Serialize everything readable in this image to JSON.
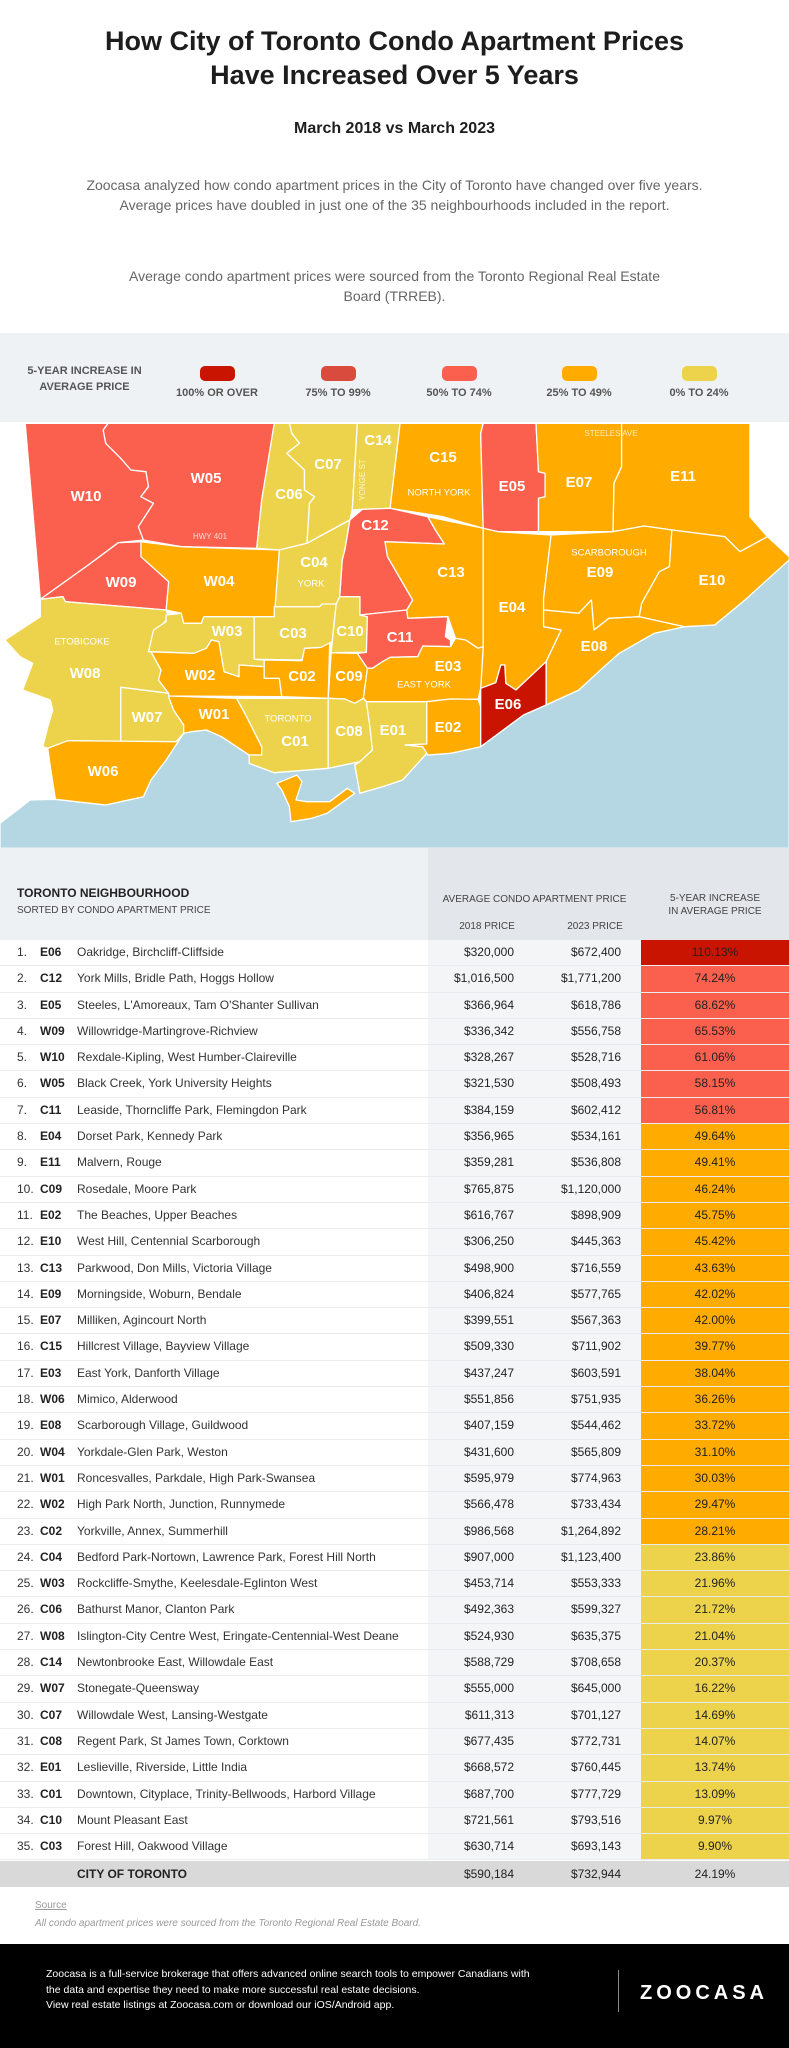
{
  "header": {
    "title_line1": "How City of Toronto Condo Apartment Prices",
    "title_line2": "Have Increased Over 5 Years",
    "subtitle": "March 2018 vs March 2023",
    "intro": "Zoocasa analyzed how condo apartment prices in the City of Toronto have changed over five years. Average prices have doubled in just one of the 35 neighbourhoods included in the report.",
    "source_note": "Average condo apartment prices were sourced from the Toronto Regional Real Estate Board (TRREB)."
  },
  "legend": {
    "title": "5-YEAR INCREASE IN AVERAGE PRICE",
    "items": [
      {
        "label": "100% OR OVER",
        "color": "#c81400"
      },
      {
        "label": "75% TO 99%",
        "color": "#d94b3c"
      },
      {
        "label": "50% TO 74%",
        "color": "#fb5f4d"
      },
      {
        "label": "25% TO 49%",
        "color": "#ffab00"
      },
      {
        "label": "0% TO 24%",
        "color": "#ecd34b"
      }
    ]
  },
  "map": {
    "water_color": "#b5d6e3",
    "areas": {
      "north_york": "NORTH YORK",
      "scarborough": "SCARBOROUGH",
      "etobicoke": "ETOBICOKE",
      "york": "YORK",
      "east_york": "EAST YORK",
      "toronto": "TORONTO"
    },
    "roads": {
      "steeles": "STEELES AVE",
      "yonge": "YONGE ST",
      "hwy401": "HWY 401"
    }
  },
  "chart_data": {
    "type": "table",
    "title": "How City of Toronto Condo Apartment Prices Have Increased Over 5 Years",
    "columns": {
      "neighbourhood": "TORONTO NEIGHBOURHOOD",
      "sorted_by": "SORTED BY CONDO APARTMENT PRICE",
      "avg_price": "AVERAGE CONDO APARTMENT PRICE",
      "y2018": "2018 PRICE",
      "y2023": "2023 PRICE",
      "increase_line1": "5-YEAR INCREASE",
      "increase_line2": "IN AVERAGE PRICE"
    },
    "rows": [
      {
        "rank": "1.",
        "code": "E06",
        "name": "Oakridge, Birchcliff-Cliffside",
        "p2018": "$320,000",
        "p2023": "$672,400",
        "pct": "110.13%"
      },
      {
        "rank": "2.",
        "code": "C12",
        "name": "York Mills, Bridle Path, Hoggs Hollow",
        "p2018": "$1,016,500",
        "p2023": "$1,771,200",
        "pct": "74.24%"
      },
      {
        "rank": "3.",
        "code": "E05",
        "name": "Steeles, L'Amoreaux, Tam O'Shanter Sullivan",
        "p2018": "$366,964",
        "p2023": "$618,786",
        "pct": "68.62%"
      },
      {
        "rank": "4.",
        "code": "W09",
        "name": "Willowridge-Martingrove-Richview",
        "p2018": "$336,342",
        "p2023": "$556,758",
        "pct": "65.53%"
      },
      {
        "rank": "5.",
        "code": "W10",
        "name": "Rexdale-Kipling, West Humber-Claireville",
        "p2018": "$328,267",
        "p2023": "$528,716",
        "pct": "61.06%"
      },
      {
        "rank": "6.",
        "code": "W05",
        "name": "Black Creek, York University Heights",
        "p2018": "$321,530",
        "p2023": "$508,493",
        "pct": "58.15%"
      },
      {
        "rank": "7.",
        "code": "C11",
        "name": "Leaside, Thorncliffe Park, Flemingdon Park",
        "p2018": "$384,159",
        "p2023": "$602,412",
        "pct": "56.81%"
      },
      {
        "rank": "8.",
        "code": "E04",
        "name": "Dorset Park, Kennedy Park",
        "p2018": "$356,965",
        "p2023": "$534,161",
        "pct": "49.64%"
      },
      {
        "rank": "9.",
        "code": "E11",
        "name": "Malvern, Rouge",
        "p2018": "$359,281",
        "p2023": "$536,808",
        "pct": "49.41%"
      },
      {
        "rank": "10.",
        "code": "C09",
        "name": "Rosedale, Moore Park",
        "p2018": "$765,875",
        "p2023": "$1,120,000",
        "pct": "46.24%"
      },
      {
        "rank": "11.",
        "code": "E02",
        "name": "The Beaches, Upper Beaches",
        "p2018": "$616,767",
        "p2023": "$898,909",
        "pct": "45.75%"
      },
      {
        "rank": "12.",
        "code": "E10",
        "name": "West Hill, Centennial Scarborough",
        "p2018": "$306,250",
        "p2023": "$445,363",
        "pct": "45.42%"
      },
      {
        "rank": "13.",
        "code": "C13",
        "name": "Parkwood, Don Mills, Victoria Village",
        "p2018": "$498,900",
        "p2023": "$716,559",
        "pct": "43.63%"
      },
      {
        "rank": "14.",
        "code": "E09",
        "name": "Morningside, Woburn, Bendale",
        "p2018": "$406,824",
        "p2023": "$577,765",
        "pct": "42.02%"
      },
      {
        "rank": "15.",
        "code": "E07",
        "name": "Milliken, Agincourt North",
        "p2018": "$399,551",
        "p2023": "$567,363",
        "pct": "42.00%"
      },
      {
        "rank": "16.",
        "code": "C15",
        "name": "Hillcrest Village, Bayview Village",
        "p2018": "$509,330",
        "p2023": "$711,902",
        "pct": "39.77%"
      },
      {
        "rank": "17.",
        "code": "E03",
        "name": "East York, Danforth Village",
        "p2018": "$437,247",
        "p2023": "$603,591",
        "pct": "38.04%"
      },
      {
        "rank": "18.",
        "code": "W06",
        "name": "Mimico, Alderwood",
        "p2018": "$551,856",
        "p2023": "$751,935",
        "pct": "36.26%"
      },
      {
        "rank": "19.",
        "code": "E08",
        "name": "Scarborough Village, Guildwood",
        "p2018": "$407,159",
        "p2023": "$544,462",
        "pct": "33.72%"
      },
      {
        "rank": "20.",
        "code": "W04",
        "name": "Yorkdale-Glen Park, Weston",
        "p2018": "$431,600",
        "p2023": "$565,809",
        "pct": "31.10%"
      },
      {
        "rank": "21.",
        "code": "W01",
        "name": "Roncesvalles, Parkdale, High Park-Swansea",
        "p2018": "$595,979",
        "p2023": "$774,963",
        "pct": "30.03%"
      },
      {
        "rank": "22.",
        "code": "W02",
        "name": "High Park North, Junction, Runnymede",
        "p2018": "$566,478",
        "p2023": "$733,434",
        "pct": "29.47%"
      },
      {
        "rank": "23.",
        "code": "C02",
        "name": "Yorkville, Annex, Summerhill",
        "p2018": "$986,568",
        "p2023": "$1,264,892",
        "pct": "28.21%"
      },
      {
        "rank": "24.",
        "code": "C04",
        "name": "Bedford Park-Nortown, Lawrence Park, Forest Hill North",
        "p2018": "$907,000",
        "p2023": "$1,123,400",
        "pct": "23.86%"
      },
      {
        "rank": "25.",
        "code": "W03",
        "name": "Rockcliffe-Smythe, Keelesdale-Eglinton West",
        "p2018": "$453,714",
        "p2023": "$553,333",
        "pct": "21.96%"
      },
      {
        "rank": "26.",
        "code": "C06",
        "name": "Bathurst Manor, Clanton Park",
        "p2018": "$492,363",
        "p2023": "$599,327",
        "pct": "21.72%"
      },
      {
        "rank": "27.",
        "code": "W08",
        "name": "Islington-City Centre West, Eringate-Centennial-West Deane",
        "p2018": "$524,930",
        "p2023": "$635,375",
        "pct": "21.04%"
      },
      {
        "rank": "28.",
        "code": "C14",
        "name": "Newtonbrooke East, Willowdale East",
        "p2018": "$588,729",
        "p2023": "$708,658",
        "pct": "20.37%"
      },
      {
        "rank": "29.",
        "code": "W07",
        "name": "Stonegate-Queensway",
        "p2018": "$555,000",
        "p2023": "$645,000",
        "pct": "16.22%"
      },
      {
        "rank": "30.",
        "code": "C07",
        "name": "Willowdale West, Lansing-Westgate",
        "p2018": "$611,313",
        "p2023": "$701,127",
        "pct": "14.69%"
      },
      {
        "rank": "31.",
        "code": "C08",
        "name": "Regent Park, St James Town, Corktown",
        "p2018": "$677,435",
        "p2023": "$772,731",
        "pct": "14.07%"
      },
      {
        "rank": "32.",
        "code": "E01",
        "name": "Leslieville, Riverside, Little India",
        "p2018": "$668,572",
        "p2023": "$760,445",
        "pct": "13.74%"
      },
      {
        "rank": "33.",
        "code": "C01",
        "name": "Downtown, Cityplace, Trinity-Bellwoods, Harbord Village",
        "p2018": "$687,700",
        "p2023": "$777,729",
        "pct": "13.09%"
      },
      {
        "rank": "34.",
        "code": "C10",
        "name": "Mount Pleasant East",
        "p2018": "$721,561",
        "p2023": "$793,516",
        "pct": "9.97%"
      },
      {
        "rank": "35.",
        "code": "C03",
        "name": "Forest Hill, Oakwood Village",
        "p2018": "$630,714",
        "p2023": "$693,143",
        "pct": "9.90%"
      }
    ],
    "total": {
      "name": "CITY OF TORONTO",
      "p2018": "$590,184",
      "p2023": "$732,944",
      "pct": "24.19%"
    }
  },
  "source": {
    "label": "Source",
    "text": "All condo apartment prices were sourced from the Toronto Regional Real Estate Board."
  },
  "footer": {
    "line1": "Zoocasa is a full-service brokerage that offers advanced online search tools to empower Canadians with",
    "line2": "the data and expertise they need to make more successful real estate decisions.",
    "line3": "View real estate listings at Zoocasa.com or download our iOS/Android app.",
    "logo": "ZOOCASA"
  }
}
